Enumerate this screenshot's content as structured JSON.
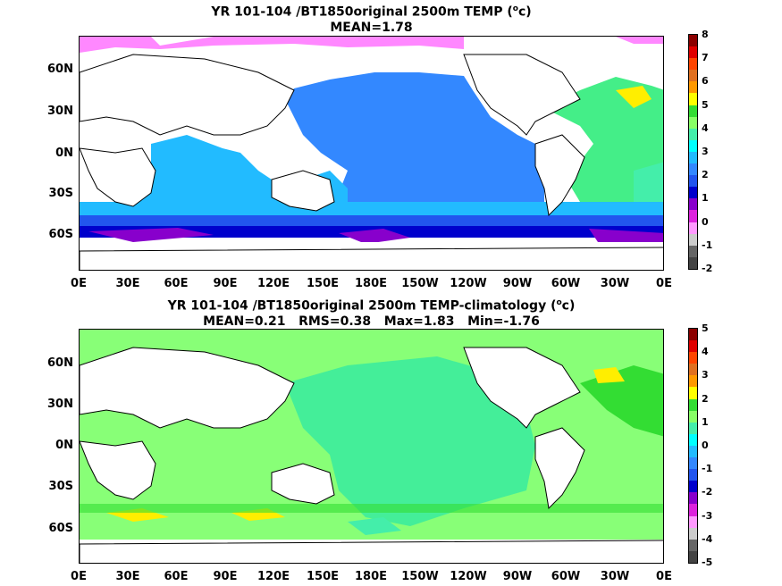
{
  "panels": [
    {
      "title_line1": "YR 101-104 /BT1850original 2500m TEMP (",
      "title_deg": "o",
      "title_unit": "c)",
      "title_line2": "MEAN=1.78",
      "colorbar_labels": [
        "8",
        "7",
        "6",
        "5",
        "4",
        "3",
        "2",
        "1",
        "0",
        "-1",
        "-2"
      ],
      "colorbar_colors": [
        "#8b0000",
        "#e00000",
        "#ff4500",
        "#e07020",
        "#ff9900",
        "#ffff00",
        "#33dd33",
        "#88ff66",
        "#44eeaa",
        "#00ffff",
        "#22bbff",
        "#3388ff",
        "#2255ee",
        "#0000cc",
        "#8800cc",
        "#dd22dd",
        "#ff99ff",
        "#cccccc",
        "#666666",
        "#444444"
      ]
    },
    {
      "title_line1": "YR 101-104 /BT1850original 2500m TEMP-climatology (",
      "title_deg": "o",
      "title_unit": "c)",
      "title_line2": "MEAN=0.21   RMS=0.38   Max=1.83   Min=-1.76",
      "colorbar_labels": [
        "5",
        "4",
        "3",
        "2",
        "1",
        "0",
        "-1",
        "-2",
        "-3",
        "-4",
        "-5"
      ],
      "colorbar_colors": [
        "#8b0000",
        "#e00000",
        "#ff4500",
        "#e07020",
        "#ff9900",
        "#ffff00",
        "#33dd33",
        "#88ff66",
        "#44eeaa",
        "#00ffff",
        "#22bbff",
        "#3388ff",
        "#2255ee",
        "#0000cc",
        "#8800cc",
        "#dd22dd",
        "#ff99ff",
        "#cccccc",
        "#666666",
        "#444444"
      ]
    }
  ],
  "lat_labels": [
    "60N",
    "30N",
    "0N",
    "30S",
    "60S"
  ],
  "lon_labels": [
    "0E",
    "30E",
    "60E",
    "90E",
    "120E",
    "150E",
    "180E",
    "150W",
    "120W",
    "90W",
    "60W",
    "30W",
    "0E"
  ]
}
